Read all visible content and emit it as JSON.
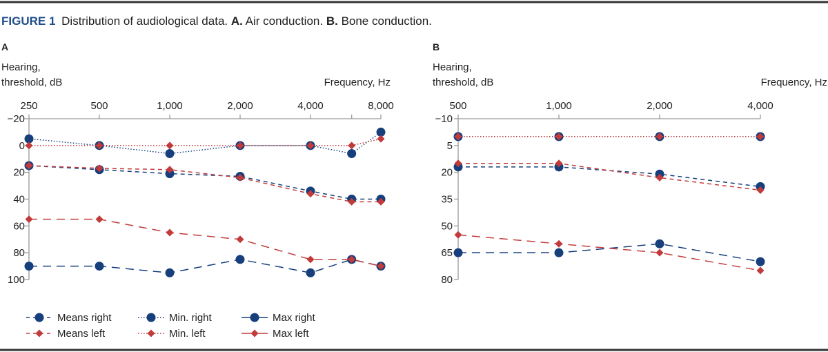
{
  "figure": {
    "label": "FIGURE 1",
    "caption_parts": [
      "Distribution of audiological data. ",
      "A.",
      " Air conduction. ",
      "B.",
      " Bone conduction."
    ]
  },
  "colors": {
    "title": "#1f4e8c",
    "right": "#163f7c",
    "left": "#c23b3b",
    "axis": "#999999",
    "rule": "#333333"
  },
  "legend": [
    {
      "name": "Means right",
      "style": "dashed",
      "marker": "circle",
      "color": "#163f7c"
    },
    {
      "name": "Min. right",
      "style": "dotted",
      "marker": "circle",
      "color": "#163f7c"
    },
    {
      "name": "Max right",
      "style": "solid",
      "marker": "circle",
      "color": "#163f7c"
    },
    {
      "name": "Means left",
      "style": "dashed",
      "marker": "diamond",
      "color": "#c23b3b"
    },
    {
      "name": "Min. left",
      "style": "dotted",
      "marker": "diamond",
      "color": "#c23b3b"
    },
    {
      "name": "Max left",
      "style": "solid",
      "marker": "diamond",
      "color": "#c23b3b"
    }
  ],
  "chart_data": [
    {
      "panel": "A",
      "type": "line",
      "title": "Air conduction",
      "xlabel": "Frequency, Hz",
      "ylabel_lines": [
        "Hearing,",
        "threshold, dB"
      ],
      "x_scale": "log",
      "x": [
        250,
        500,
        1000,
        2000,
        4000,
        6000,
        8000
      ],
      "x_ticks": [
        250,
        500,
        1000,
        2000,
        4000,
        6000,
        8000
      ],
      "x_tick_labels": [
        "250",
        "500",
        "1,000",
        "2,000",
        "4,000",
        "",
        "8,000"
      ],
      "ylim": [
        -20,
        100
      ],
      "y_inverted": true,
      "y_ticks": [
        -20,
        0,
        20,
        40,
        60,
        80,
        100
      ],
      "y_tick_labels": [
        "−20",
        "0",
        "20",
        "40",
        "60",
        "80",
        "100"
      ],
      "grid": false,
      "series": [
        {
          "name": "Means right",
          "values": [
            15,
            18,
            21,
            23,
            34,
            40,
            40
          ]
        },
        {
          "name": "Means left",
          "values": [
            15,
            17,
            18,
            24,
            36,
            42,
            42
          ]
        },
        {
          "name": "Min. right",
          "values": [
            -5,
            0,
            6,
            0,
            0,
            6,
            -10
          ]
        },
        {
          "name": "Min. left",
          "values": [
            0,
            0,
            0,
            0,
            0,
            0,
            -5
          ]
        },
        {
          "name": "Max right",
          "values": [
            90,
            90,
            95,
            85,
            95,
            85,
            90
          ]
        },
        {
          "name": "Max left",
          "values": [
            55,
            55,
            65,
            70,
            85,
            85,
            90
          ]
        }
      ]
    },
    {
      "panel": "B",
      "type": "line",
      "title": "Bone conduction",
      "xlabel": "Frequency, Hz",
      "ylabel_lines": [
        "Hearing,",
        "threshold, dB"
      ],
      "x_scale": "log",
      "x": [
        500,
        1000,
        2000,
        4000
      ],
      "x_ticks": [
        500,
        1000,
        2000,
        4000
      ],
      "x_tick_labels": [
        "500",
        "1,000",
        "2,000",
        "4,000"
      ],
      "ylim": [
        -10,
        80
      ],
      "y_inverted": true,
      "y_ticks": [
        -10,
        5,
        20,
        35,
        50,
        65,
        80
      ],
      "y_tick_labels": [
        "−10",
        "5",
        "20",
        "35",
        "50",
        "65",
        "80"
      ],
      "grid": false,
      "series": [
        {
          "name": "Means right",
          "values": [
            17,
            17,
            21,
            28
          ]
        },
        {
          "name": "Means left",
          "values": [
            15,
            15,
            23,
            30
          ]
        },
        {
          "name": "Min. right",
          "values": [
            0,
            0,
            0,
            0
          ]
        },
        {
          "name": "Min. left",
          "values": [
            0,
            0,
            0,
            0
          ]
        },
        {
          "name": "Max right",
          "values": [
            65,
            65,
            60,
            70
          ]
        },
        {
          "name": "Max left",
          "values": [
            55,
            60,
            65,
            75
          ]
        }
      ]
    }
  ]
}
